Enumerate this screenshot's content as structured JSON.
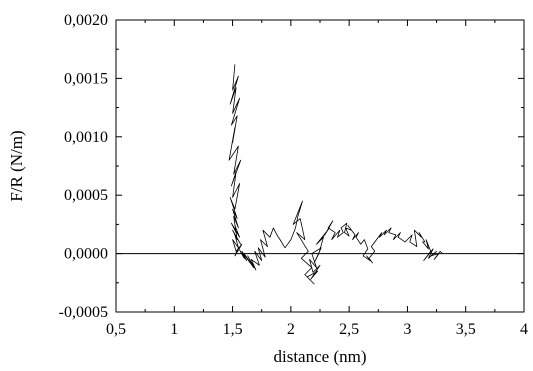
{
  "chart_data": {
    "type": "line",
    "xlabel": "distance (nm)",
    "ylabel": "F/R (N/m)",
    "xlim": [
      0.5,
      4.0
    ],
    "ylim": [
      -0.0005,
      0.002
    ],
    "x_ticks": [
      0.5,
      1.0,
      1.5,
      2.0,
      2.5,
      3.0,
      3.5,
      4.0
    ],
    "x_tick_labels": [
      "0,5",
      "1",
      "1,5",
      "2",
      "2,5",
      "3",
      "3,5",
      "4"
    ],
    "y_ticks": [
      -0.0005,
      0.0,
      0.0005,
      0.001,
      0.0015,
      0.002
    ],
    "y_tick_labels": [
      "-0,0005",
      "0,0000",
      "0,0005",
      "0,0010",
      "0,0015",
      "0,0020"
    ],
    "grid": false,
    "reference_line_y": 0.0,
    "series": [
      {
        "x": [
          1.52,
          1.5,
          1.55,
          1.48,
          1.53,
          1.5,
          1.56,
          1.49,
          1.54,
          1.5,
          1.52,
          1.47,
          1.55,
          1.51,
          1.57,
          1.49,
          1.53,
          1.5,
          1.56,
          1.52,
          1.48,
          1.54,
          1.5,
          1.55,
          1.51,
          1.53,
          1.49,
          1.56,
          1.52,
          1.54,
          1.5,
          1.57,
          1.52,
          1.55,
          1.5,
          1.53,
          1.58,
          1.52,
          1.55,
          1.6,
          1.56,
          1.62,
          1.58,
          1.65,
          1.6,
          1.68,
          1.63,
          1.7,
          1.66,
          1.73,
          1.69,
          1.75,
          1.72,
          1.78,
          1.74,
          1.8,
          1.76,
          1.82,
          1.85,
          1.88,
          1.92,
          1.95,
          2.0,
          2.04,
          2.06,
          2.1,
          2.02,
          2.08,
          2.12,
          2.05,
          2.15,
          2.09,
          2.18,
          2.12,
          2.2,
          2.14,
          2.23,
          2.17,
          2.25,
          2.19,
          2.16,
          2.22,
          2.18,
          2.26,
          2.2,
          2.24,
          2.28,
          2.22,
          2.3,
          2.26,
          2.33,
          2.29,
          2.36,
          2.32,
          2.38,
          2.35,
          2.42,
          2.4,
          2.45,
          2.43,
          2.48,
          2.46,
          2.5,
          2.47,
          2.52,
          2.49,
          2.55,
          2.53,
          2.58,
          2.56,
          2.6,
          2.63,
          2.66,
          2.62,
          2.68,
          2.65,
          2.7,
          2.67,
          2.72,
          2.69,
          2.75,
          2.72,
          2.78,
          2.76,
          2.82,
          2.8,
          2.86,
          2.84,
          2.9,
          2.88,
          2.94,
          2.92,
          2.98,
          3.0,
          3.04,
          3.02,
          3.08,
          3.06,
          3.12,
          3.1,
          3.15,
          3.13,
          3.18,
          3.16,
          3.2,
          3.14,
          3.22,
          3.18,
          3.25,
          3.2,
          3.27,
          3.23,
          3.28,
          3.3
        ],
        "y": [
          0.00162,
          0.0014,
          0.00152,
          0.00128,
          0.00142,
          0.0012,
          0.00133,
          0.0011,
          0.00118,
          0.00095,
          0.00108,
          0.0008,
          0.00092,
          0.00068,
          0.0008,
          0.00058,
          0.0007,
          0.00048,
          0.0006,
          0.00038,
          0.00048,
          0.0003,
          0.00038,
          0.00022,
          0.00032,
          0.00018,
          0.00026,
          0.00014,
          0.00024,
          0.00012,
          0.0002,
          8e-05,
          0.00016,
          5e-05,
          0.00012,
          2e-05,
          8e-05,
          -2e-05,
          5e-05,
          -4e-05,
          3e-05,
          -6e-05,
          2e-05,
          -8e-05,
          0.0,
          -0.00012,
          -2e-05,
          -0.00014,
          -5e-05,
          -0.0001,
          2e-05,
          -6e-05,
          5e-05,
          -3e-05,
          0.00012,
          6e-05,
          0.0002,
          0.00014,
          0.00022,
          0.00016,
          0.0001,
          5e-05,
          0.00012,
          0.00022,
          0.00032,
          0.00045,
          0.00025,
          0.0003,
          0.00012,
          0.00018,
          2e-05,
          -4e-05,
          -0.00012,
          -0.00018,
          -0.00026,
          -0.0002,
          -0.00015,
          -0.00022,
          -0.0001,
          -0.00016,
          -5e-05,
          -0.00012,
          0.0,
          5e-05,
          -8e-05,
          0.0,
          0.00014,
          8e-05,
          0.00018,
          0.00012,
          0.00022,
          0.00016,
          0.00028,
          0.00022,
          0.00018,
          0.00012,
          0.0002,
          0.00014,
          0.00018,
          0.00022,
          0.00026,
          0.00018,
          0.00015,
          0.00022,
          0.0002,
          0.00024,
          0.00016,
          0.00012,
          0.00018,
          0.00014,
          8e-05,
          0.00012,
          4e-05,
          -2e-05,
          -6e-05,
          -2e-05,
          -8e-05,
          -4e-05,
          2e-05,
          6e-05,
          0.00014,
          0.0001,
          0.00018,
          0.00014,
          0.0002,
          0.00016,
          0.00022,
          0.00018,
          0.00016,
          0.00012,
          0.00018,
          0.00014,
          0.0001,
          0.00012,
          0.00016,
          0.0001,
          6e-05,
          0.0002,
          0.00014,
          0.00018,
          0.0001,
          0.0001,
          4e-05,
          0.00012,
          2e-05,
          -6e-05,
          4e-05,
          -4e-05,
          2e-05,
          -2e-05,
          0.0,
          -5e-05,
          2e-05,
          0.0
        ]
      }
    ]
  }
}
